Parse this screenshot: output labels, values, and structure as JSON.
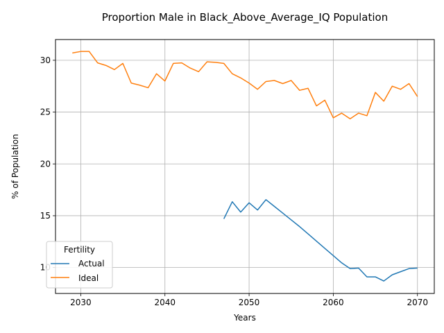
{
  "chart_data": {
    "type": "line",
    "title": "Proportion Male in Black_Above_Average_IQ Population",
    "xlabel": "Years",
    "ylabel": "% of Population",
    "xlim": [
      2027,
      2072
    ],
    "ylim": [
      7.5,
      32
    ],
    "xticks": [
      2030,
      2040,
      2050,
      2060,
      2070
    ],
    "yticks": [
      10,
      15,
      20,
      25,
      30
    ],
    "grid": true,
    "legend": {
      "title": "Fertility",
      "placement": "lower-left"
    },
    "colors": {
      "Actual": "#1f77b4",
      "Ideal": "#ff7f0e"
    },
    "series": [
      {
        "name": "Actual",
        "x": [
          2047,
          2048,
          2049,
          2050,
          2051,
          2052,
          2053,
          2054,
          2055,
          2056,
          2057,
          2058,
          2059,
          2060,
          2061,
          2062,
          2063,
          2064,
          2065,
          2066,
          2067,
          2068,
          2069,
          2070
        ],
        "values": [
          14.7,
          16.35,
          15.35,
          16.25,
          15.55,
          16.55,
          15.9,
          15.25,
          14.6,
          13.95,
          13.25,
          12.55,
          11.85,
          11.15,
          10.45,
          9.9,
          9.95,
          9.1,
          9.1,
          8.7,
          9.3,
          9.6,
          9.9,
          9.95
        ]
      },
      {
        "name": "Ideal",
        "x": [
          2029,
          2030,
          2031,
          2032,
          2033,
          2034,
          2035,
          2036,
          2037,
          2038,
          2039,
          2040,
          2041,
          2042,
          2043,
          2044,
          2045,
          2046,
          2047,
          2048,
          2049,
          2050,
          2051,
          2052,
          2053,
          2054,
          2055,
          2056,
          2057,
          2058,
          2059,
          2060,
          2061,
          2062,
          2063,
          2064,
          2065,
          2066,
          2067,
          2068,
          2069,
          2070
        ],
        "values": [
          30.7,
          30.85,
          30.85,
          29.75,
          29.5,
          29.1,
          29.7,
          27.8,
          27.6,
          27.35,
          28.7,
          28.0,
          29.7,
          29.75,
          29.25,
          28.9,
          29.85,
          29.8,
          29.7,
          28.7,
          28.3,
          27.8,
          27.2,
          27.95,
          28.05,
          27.75,
          28.05,
          27.1,
          27.3,
          25.6,
          26.15,
          24.45,
          24.9,
          24.35,
          24.9,
          24.65,
          26.9,
          26.05,
          27.5,
          27.2,
          27.75,
          26.5
        ]
      }
    ]
  }
}
